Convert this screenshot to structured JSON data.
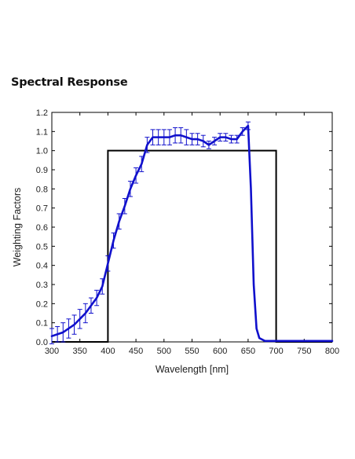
{
  "heading": "Spectral Response",
  "chart_data": {
    "type": "line",
    "title": "",
    "xlabel": "Wavelength [nm]",
    "ylabel": "Weighting Factors",
    "xlim": [
      300,
      800
    ],
    "ylim": [
      0.0,
      1.2
    ],
    "xticks": [
      300,
      350,
      400,
      450,
      500,
      550,
      600,
      650,
      700,
      750,
      800
    ],
    "yticks": [
      "0.0",
      "0.1",
      "0.2",
      "0.3",
      "0.4",
      "0.5",
      "0.6",
      "0.7",
      "0.8",
      "0.9",
      "1.0",
      "1.1",
      "1.2"
    ],
    "grid": false,
    "legend": "none",
    "colors": {
      "measured": "#1010cc",
      "box": "#000000"
    },
    "series": [
      {
        "style": "box",
        "x": [
          300,
          400,
          400,
          700,
          700,
          800
        ],
        "y": [
          0.0,
          0.0,
          1.0,
          1.0,
          0.0,
          0.0
        ]
      },
      {
        "style": "line-with-errorbars",
        "x": [
          300,
          310,
          320,
          330,
          340,
          350,
          360,
          370,
          380,
          390,
          400,
          410,
          420,
          430,
          440,
          450,
          460,
          470,
          480,
          490,
          500,
          510,
          520,
          530,
          540,
          550,
          560,
          570,
          580,
          590,
          600,
          610,
          620,
          630,
          640,
          650,
          655,
          660,
          665,
          670,
          680,
          700,
          750,
          800
        ],
        "y": [
          0.03,
          0.04,
          0.05,
          0.07,
          0.09,
          0.12,
          0.15,
          0.19,
          0.23,
          0.29,
          0.41,
          0.53,
          0.63,
          0.71,
          0.8,
          0.87,
          0.93,
          1.03,
          1.07,
          1.07,
          1.07,
          1.07,
          1.08,
          1.08,
          1.07,
          1.06,
          1.06,
          1.05,
          1.03,
          1.05,
          1.07,
          1.07,
          1.06,
          1.06,
          1.1,
          1.13,
          0.8,
          0.3,
          0.07,
          0.02,
          0.005,
          0.005,
          0.005,
          0.005
        ],
        "err": [
          0.04,
          0.04,
          0.05,
          0.05,
          0.05,
          0.05,
          0.05,
          0.04,
          0.04,
          0.04,
          0.04,
          0.04,
          0.04,
          0.04,
          0.04,
          0.04,
          0.04,
          0.04,
          0.04,
          0.04,
          0.04,
          0.04,
          0.04,
          0.04,
          0.04,
          0.03,
          0.03,
          0.03,
          0.02,
          0.02,
          0.02,
          0.02,
          0.02,
          0.02,
          0.02,
          0.02,
          0.0,
          0.0,
          0.0,
          0.0,
          0.0,
          0.0,
          0.0,
          0.0
        ]
      }
    ]
  }
}
